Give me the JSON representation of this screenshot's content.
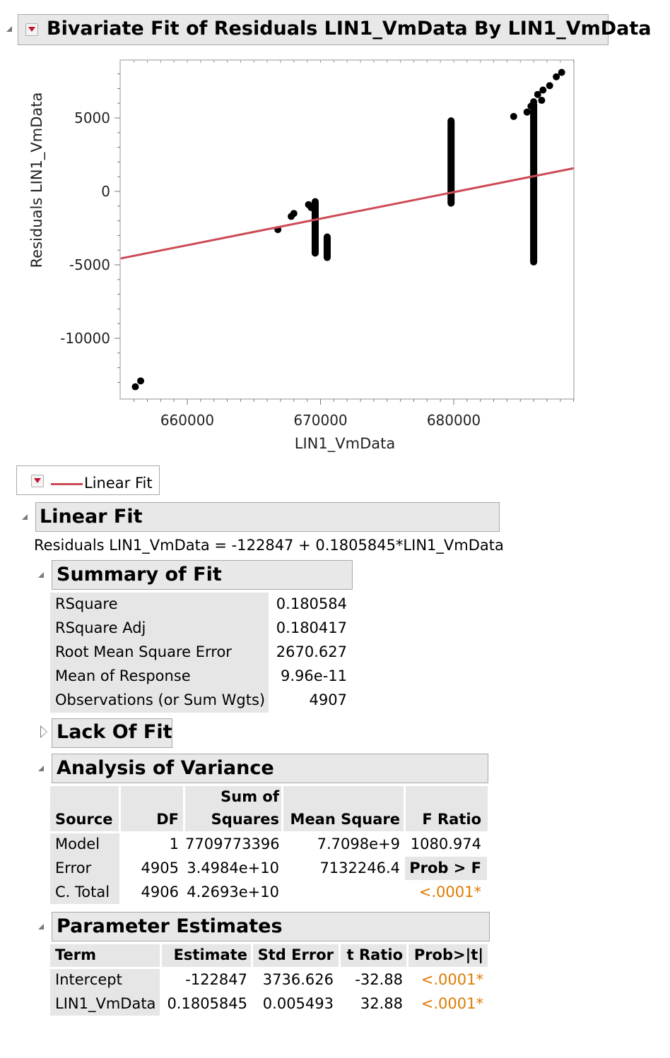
{
  "report": {
    "title": "Bivariate Fit of Residuals LIN1_VmData By LIN1_VmData"
  },
  "chart_data": {
    "type": "scatter",
    "xlabel": "LIN1_VmData",
    "ylabel": "Residuals LIN1_VmData",
    "xlim": [
      655000,
      689000
    ],
    "ylim": [
      -14000,
      9000
    ],
    "x_ticks": [
      660000,
      670000,
      680000
    ],
    "x_tick_labels": [
      "660000",
      "670000",
      "680000"
    ],
    "y_ticks": [
      5000,
      0,
      -5000,
      -10000
    ],
    "y_tick_labels": [
      "5000",
      "0",
      "-5000",
      "-10000"
    ],
    "grid": false,
    "points": [
      {
        "x": 656100,
        "y": -13300
      },
      {
        "x": 656500,
        "y": -12900
      },
      {
        "x": 666800,
        "y": -2600
      },
      {
        "x": 667800,
        "y": -1700
      },
      {
        "x": 668000,
        "y": -1500
      },
      {
        "x": 669100,
        "y": -900
      },
      {
        "x": 669300,
        "y": -1100
      },
      {
        "x": 669600,
        "y": -800
      },
      {
        "x": 684500,
        "y": 5100
      },
      {
        "x": 685500,
        "y": 5400
      },
      {
        "x": 685800,
        "y": 5800
      },
      {
        "x": 686000,
        "y": 6100
      },
      {
        "x": 686300,
        "y": 6600
      },
      {
        "x": 686600,
        "y": 6200
      },
      {
        "x": 686700,
        "y": 6900
      },
      {
        "x": 687200,
        "y": 7200
      },
      {
        "x": 687700,
        "y": 7800
      },
      {
        "x": 688100,
        "y": 8100
      }
    ],
    "vertical_clusters": [
      {
        "x": 669600,
        "y_min": -4200,
        "y_max": -700
      },
      {
        "x": 670500,
        "y_min": -4500,
        "y_max": -3100
      },
      {
        "x": 679800,
        "y_min": -800,
        "y_max": 4800
      },
      {
        "x": 686000,
        "y_min": -4800,
        "y_max": 5900
      }
    ],
    "fit_line": {
      "intercept": -122847,
      "slope": 0.1805845,
      "color": "#cd4a55"
    }
  },
  "legend": {
    "label": "Linear Fit",
    "color": "#cd4a55"
  },
  "linear_fit": {
    "title": "Linear Fit",
    "equation": "Residuals LIN1_VmData = -122847 + 0.1805845*LIN1_VmData"
  },
  "summary_of_fit": {
    "title": "Summary of Fit",
    "rows": [
      {
        "label": "RSquare",
        "value": "0.180584"
      },
      {
        "label": "RSquare Adj",
        "value": "0.180417"
      },
      {
        "label": "Root Mean Square Error",
        "value": "2670.627"
      },
      {
        "label": "Mean of Response",
        "value": "9.96e-11"
      },
      {
        "label": "Observations (or Sum Wgts)",
        "value": "4907"
      }
    ]
  },
  "lack_of_fit": {
    "title": "Lack Of Fit"
  },
  "anova": {
    "title": "Analysis of Variance",
    "headers": {
      "source": "Source",
      "df": "DF",
      "ss_top": "Sum of",
      "ss_bottom": "Squares",
      "ms": "Mean Square",
      "f": "F Ratio"
    },
    "rows": [
      {
        "source": "Model",
        "df": "1",
        "ss": "7709773396",
        "ms": "7.7098e+9",
        "f": "1080.974"
      },
      {
        "source": "Error",
        "df": "4905",
        "ss": "3.4984e+10",
        "ms": "7132246.4",
        "f": "Prob > F"
      },
      {
        "source": "C. Total",
        "df": "4906",
        "ss": "4.2693e+10",
        "ms": "",
        "f": "<.0001*"
      }
    ]
  },
  "parameter_estimates": {
    "title": "Parameter Estimates",
    "headers": {
      "term": "Term",
      "estimate": "Estimate",
      "stderr": "Std Error",
      "t": "t Ratio",
      "p": "Prob>|t|"
    },
    "rows": [
      {
        "term": "Intercept",
        "estimate": "-122847",
        "stderr": "3736.626",
        "t": "-32.88",
        "p": "<.0001*"
      },
      {
        "term": "LIN1_VmData",
        "estimate": "0.1805845",
        "stderr": "0.005493",
        "t": "32.88",
        "p": "<.0001*"
      }
    ]
  }
}
